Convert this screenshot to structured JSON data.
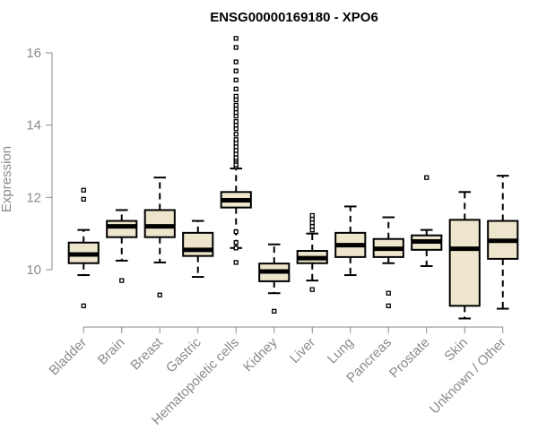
{
  "chart_data": {
    "type": "box",
    "title": "ENSG00000169180 - XPO6",
    "xlabel": "",
    "ylabel": "Expression",
    "ylim": [
      8.5,
      16.5
    ],
    "yticks": [
      10,
      12,
      14,
      16
    ],
    "yticks_labels": [
      "10",
      "12",
      "14",
      "16"
    ],
    "grid": false,
    "legend": "none",
    "colors": {
      "box_fill": "#ede5cc",
      "stroke": "#000000",
      "axis": "#8a8a8a",
      "label": "#8a8a8a"
    },
    "categories": [
      "Bladder",
      "Brain",
      "Breast",
      "Gastric",
      "Hematopoietic cells",
      "Kidney",
      "Liver",
      "Lung",
      "Pancreas",
      "Prostate",
      "Skin",
      "Unknown / Other"
    ],
    "boxes": [
      {
        "category": "Bladder",
        "whisker_low": 9.85,
        "q1": 10.18,
        "median": 10.42,
        "q3": 10.75,
        "whisker_high": 11.1,
        "outliers": [
          9.0,
          11.95,
          12.2
        ]
      },
      {
        "category": "Brain",
        "whisker_low": 10.25,
        "q1": 10.9,
        "median": 11.2,
        "q3": 11.35,
        "whisker_high": 11.65,
        "outliers": [
          9.7
        ]
      },
      {
        "category": "Breast",
        "whisker_low": 10.2,
        "q1": 10.9,
        "median": 11.2,
        "q3": 11.65,
        "whisker_high": 12.55,
        "outliers": [
          9.3
        ]
      },
      {
        "category": "Gastric",
        "whisker_low": 9.8,
        "q1": 10.38,
        "median": 10.55,
        "q3": 11.02,
        "whisker_high": 11.35,
        "outliers": []
      },
      {
        "category": "Hematopoietic cells",
        "whisker_low": 10.6,
        "q1": 11.72,
        "median": 11.92,
        "q3": 12.15,
        "whisker_high": 12.8,
        "outliers": [
          10.2,
          10.6,
          10.75,
          11.05,
          12.85,
          12.9,
          13.0,
          13.05,
          13.1,
          13.2,
          13.3,
          13.4,
          13.5,
          13.6,
          13.75,
          13.9,
          14.0,
          14.1,
          14.25,
          14.35,
          14.45,
          14.55,
          14.7,
          14.8,
          15.0,
          15.25,
          15.5,
          15.75,
          16.15,
          16.4
        ]
      },
      {
        "category": "Kidney",
        "whisker_low": 9.35,
        "q1": 9.68,
        "median": 9.95,
        "q3": 10.17,
        "whisker_high": 10.7,
        "outliers": [
          8.85
        ]
      },
      {
        "category": "Liver",
        "whisker_low": 9.7,
        "q1": 10.18,
        "median": 10.32,
        "q3": 10.52,
        "whisker_high": 11.0,
        "outliers": [
          9.45,
          11.1,
          11.2,
          11.3,
          11.4,
          11.5
        ]
      },
      {
        "category": "Lung",
        "whisker_low": 9.85,
        "q1": 10.35,
        "median": 10.68,
        "q3": 11.02,
        "whisker_high": 11.75,
        "outliers": []
      },
      {
        "category": "Pancreas",
        "whisker_low": 10.18,
        "q1": 10.35,
        "median": 10.58,
        "q3": 10.85,
        "whisker_high": 11.45,
        "outliers": [
          9.0,
          9.35
        ]
      },
      {
        "category": "Prostate",
        "whisker_low": 10.1,
        "q1": 10.55,
        "median": 10.78,
        "q3": 10.95,
        "whisker_high": 11.1,
        "outliers": [
          12.55
        ]
      },
      {
        "category": "Skin",
        "whisker_low": 8.65,
        "q1": 9.0,
        "median": 10.58,
        "q3": 11.38,
        "whisker_high": 12.15,
        "outliers": []
      },
      {
        "category": "Unknown / Other",
        "whisker_low": 8.92,
        "q1": 10.3,
        "median": 10.8,
        "q3": 11.35,
        "whisker_high": 12.6,
        "outliers": []
      }
    ]
  }
}
